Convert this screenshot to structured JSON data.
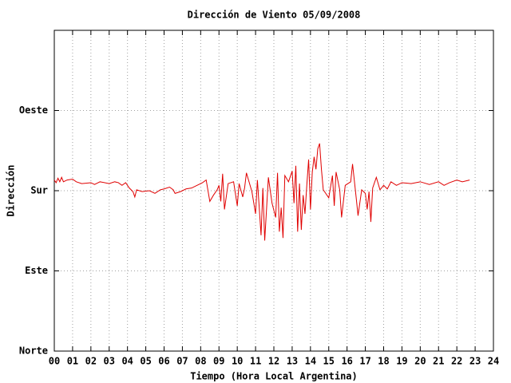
{
  "chart_data": {
    "type": "line",
    "title": "Dirección de Viento 05/09/2008",
    "x_label": "Tiempo (Hora Local Argentina)",
    "y_label": "Dirección",
    "color": "#e00000",
    "grid": true,
    "xlim": [
      0,
      24
    ],
    "ylim": [
      0,
      360
    ],
    "xticks": [
      {
        "value": 0,
        "label": "00"
      },
      {
        "value": 1,
        "label": "01"
      },
      {
        "value": 2,
        "label": "02"
      },
      {
        "value": 3,
        "label": "03"
      },
      {
        "value": 4,
        "label": "04"
      },
      {
        "value": 5,
        "label": "05"
      },
      {
        "value": 6,
        "label": "06"
      },
      {
        "value": 7,
        "label": "07"
      },
      {
        "value": 8,
        "label": "08"
      },
      {
        "value": 9,
        "label": "09"
      },
      10,
      11,
      12,
      13,
      14,
      15,
      16,
      17,
      18,
      19,
      20,
      21,
      22,
      23,
      24
    ],
    "yticks": [
      {
        "value": 0,
        "label": "Norte"
      },
      {
        "value": 90,
        "label": "Este"
      },
      {
        "value": 180,
        "label": "Sur"
      },
      {
        "value": 270,
        "label": "Oeste"
      }
    ],
    "x": [
      0.0,
      0.1,
      0.2,
      0.3,
      0.4,
      0.5,
      0.7,
      1.0,
      1.2,
      1.5,
      2.0,
      2.2,
      2.5,
      3.0,
      3.3,
      3.5,
      3.7,
      3.9,
      4.1,
      4.3,
      4.4,
      4.5,
      4.8,
      5.2,
      5.5,
      5.8,
      6.0,
      6.3,
      6.5,
      6.6,
      6.9,
      7.2,
      7.5,
      7.8,
      8.1,
      8.3,
      8.5,
      8.7,
      8.9,
      9.0,
      9.1,
      9.2,
      9.3,
      9.5,
      9.8,
      10.0,
      10.1,
      10.3,
      10.4,
      10.5,
      10.8,
      11.0,
      11.1,
      11.3,
      11.4,
      11.5,
      11.7,
      11.9,
      12.1,
      12.2,
      12.3,
      12.4,
      12.5,
      12.6,
      12.8,
      13.0,
      13.1,
      13.2,
      13.3,
      13.4,
      13.5,
      13.6,
      13.7,
      13.8,
      13.9,
      14.0,
      14.1,
      14.2,
      14.3,
      14.4,
      14.5,
      14.6,
      14.7,
      15.0,
      15.2,
      15.3,
      15.4,
      15.6,
      15.7,
      15.9,
      16.2,
      16.3,
      16.5,
      16.6,
      16.8,
      17.0,
      17.1,
      17.2,
      17.3,
      17.4,
      17.6,
      17.8,
      18.0,
      18.2,
      18.4,
      18.7,
      19.0,
      19.5,
      20.0,
      20.5,
      21.0,
      21.3,
      21.6,
      22.0,
      22.3,
      22.7
    ],
    "values": [
      192,
      189,
      194,
      190,
      195,
      190,
      192,
      193,
      190,
      188,
      189,
      187,
      190,
      188,
      190,
      189,
      186,
      189,
      183,
      179,
      173,
      181,
      179,
      180,
      177,
      181,
      182,
      184,
      181,
      177,
      179,
      182,
      183,
      186,
      189,
      192,
      168,
      175,
      181,
      186,
      168,
      199,
      159,
      188,
      190,
      163,
      188,
      173,
      183,
      200,
      179,
      154,
      192,
      130,
      183,
      124,
      195,
      166,
      150,
      200,
      134,
      161,
      127,
      197,
      190,
      202,
      166,
      208,
      134,
      188,
      136,
      175,
      154,
      186,
      215,
      159,
      201,
      218,
      204,
      227,
      233,
      204,
      181,
      172,
      197,
      163,
      201,
      181,
      150,
      186,
      190,
      210,
      172,
      152,
      181,
      177,
      159,
      179,
      145,
      183,
      195,
      181,
      186,
      182,
      190,
      186,
      189,
      188,
      190,
      187,
      190,
      186,
      189,
      192,
      190,
      192
    ]
  }
}
